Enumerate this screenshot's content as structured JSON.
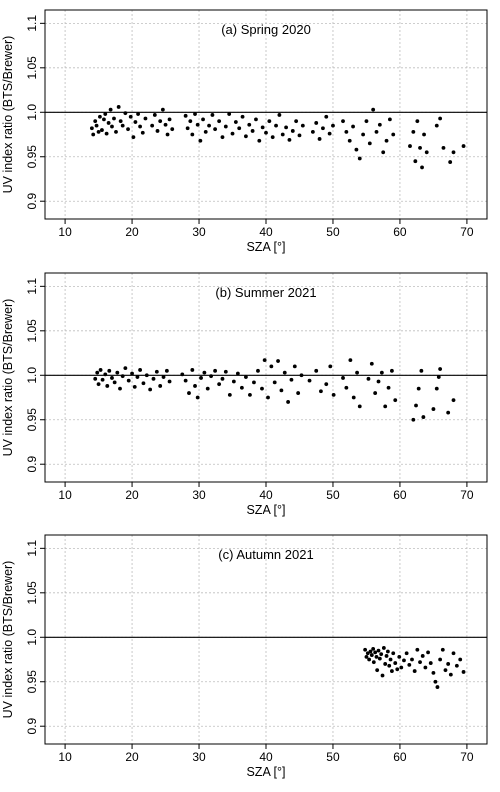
{
  "chart_data": [
    {
      "type": "scatter",
      "title": "(a) Spring 2020",
      "xlabel": "SZA [°]",
      "ylabel": "UV index ratio (BTS/Brewer)",
      "xlim": [
        7,
        73
      ],
      "ylim": [
        0.88,
        1.115
      ],
      "x_ticks": [
        10,
        20,
        30,
        40,
        50,
        60,
        70
      ],
      "x_tick_labels": [
        "10",
        "20",
        "30",
        "40",
        "50",
        "60",
        "70"
      ],
      "y_ticks": [
        0.9,
        0.95,
        1.0,
        1.05,
        1.1
      ],
      "y_tick_labels": [
        "0.9",
        "0.95",
        "1.0",
        "1.05",
        "1.1"
      ],
      "reference_line": 1.0,
      "grid": true,
      "marker_color": "#000000",
      "points": [
        [
          14.0,
          0.982
        ],
        [
          14.2,
          0.975
        ],
        [
          14.5,
          0.99
        ],
        [
          14.7,
          0.985
        ],
        [
          15.0,
          0.978
        ],
        [
          15.2,
          0.995
        ],
        [
          15.5,
          0.98
        ],
        [
          15.8,
          0.992
        ],
        [
          16.0,
          0.998
        ],
        [
          16.2,
          0.976
        ],
        [
          16.5,
          0.988
        ],
        [
          16.8,
          1.003
        ],
        [
          17.0,
          0.984
        ],
        [
          17.3,
          0.993
        ],
        [
          17.6,
          0.978
        ],
        [
          18.0,
          1.006
        ],
        [
          18.3,
          0.99
        ],
        [
          18.6,
          0.985
        ],
        [
          19.0,
          0.999
        ],
        [
          19.4,
          0.981
        ],
        [
          19.8,
          0.995
        ],
        [
          20.2,
          0.972
        ],
        [
          20.5,
          0.989
        ],
        [
          20.9,
          0.998
        ],
        [
          21.2,
          0.984
        ],
        [
          21.6,
          0.977
        ],
        [
          22.0,
          0.993
        ],
        [
          23.0,
          0.985
        ],
        [
          23.4,
          0.997
        ],
        [
          23.8,
          0.979
        ],
        [
          24.2,
          0.99
        ],
        [
          24.6,
          1.003
        ],
        [
          25.0,
          0.986
        ],
        [
          25.3,
          0.975
        ],
        [
          25.6,
          0.992
        ],
        [
          26.0,
          0.981
        ],
        [
          28.0,
          0.996
        ],
        [
          28.3,
          0.982
        ],
        [
          28.7,
          0.99
        ],
        [
          29.0,
          0.975
        ],
        [
          29.4,
          0.998
        ],
        [
          29.8,
          0.986
        ],
        [
          30.2,
          0.968
        ],
        [
          30.6,
          0.992
        ],
        [
          31.0,
          0.978
        ],
        [
          31.5,
          0.985
        ],
        [
          32.0,
          0.997
        ],
        [
          32.4,
          0.981
        ],
        [
          33.0,
          0.99
        ],
        [
          33.5,
          0.972
        ],
        [
          34.0,
          0.984
        ],
        [
          34.5,
          0.998
        ],
        [
          35.0,
          0.976
        ],
        [
          35.5,
          0.989
        ],
        [
          36.0,
          0.982
        ],
        [
          36.5,
          0.995
        ],
        [
          37.0,
          0.973
        ],
        [
          37.5,
          0.986
        ],
        [
          38.0,
          0.979
        ],
        [
          38.5,
          0.992
        ],
        [
          39.0,
          0.968
        ],
        [
          39.5,
          0.983
        ],
        [
          40.0,
          0.977
        ],
        [
          40.5,
          0.99
        ],
        [
          41.0,
          0.972
        ],
        [
          41.5,
          0.985
        ],
        [
          42.0,
          0.997
        ],
        [
          42.5,
          0.975
        ],
        [
          43.0,
          0.983
        ],
        [
          43.5,
          0.969
        ],
        [
          44.0,
          0.979
        ],
        [
          44.5,
          0.99
        ],
        [
          45.0,
          0.974
        ],
        [
          45.5,
          0.985
        ],
        [
          47.0,
          0.978
        ],
        [
          47.5,
          0.988
        ],
        [
          48.0,
          0.97
        ],
        [
          48.5,
          0.982
        ],
        [
          49.0,
          0.995
        ],
        [
          49.5,
          0.976
        ],
        [
          50.0,
          0.985
        ],
        [
          51.5,
          0.99
        ],
        [
          52.0,
          0.978
        ],
        [
          52.5,
          0.968
        ],
        [
          53.0,
          0.984
        ],
        [
          53.5,
          0.958
        ],
        [
          54.0,
          0.948
        ],
        [
          54.5,
          0.975
        ],
        [
          55.0,
          0.99
        ],
        [
          55.5,
          0.965
        ],
        [
          56.0,
          1.003
        ],
        [
          56.5,
          0.978
        ],
        [
          57.0,
          0.986
        ],
        [
          57.5,
          0.955
        ],
        [
          58.0,
          0.968
        ],
        [
          58.5,
          0.992
        ],
        [
          59.0,
          0.975
        ],
        [
          61.5,
          0.962
        ],
        [
          62.0,
          0.978
        ],
        [
          62.3,
          0.945
        ],
        [
          62.6,
          0.99
        ],
        [
          63.0,
          0.96
        ],
        [
          63.3,
          0.938
        ],
        [
          63.6,
          0.975
        ],
        [
          64.0,
          0.955
        ],
        [
          65.5,
          0.985
        ],
        [
          66.0,
          0.993
        ],
        [
          66.5,
          0.96
        ],
        [
          67.5,
          0.944
        ],
        [
          68.0,
          0.955
        ],
        [
          69.5,
          0.962
        ]
      ]
    },
    {
      "type": "scatter",
      "title": "(b) Summer 2021",
      "xlabel": "SZA [°]",
      "ylabel": "UV index ratio (BTS/Brewer)",
      "xlim": [
        7,
        73
      ],
      "ylim": [
        0.88,
        1.115
      ],
      "x_ticks": [
        10,
        20,
        30,
        40,
        50,
        60,
        70
      ],
      "x_tick_labels": [
        "10",
        "20",
        "30",
        "40",
        "50",
        "60",
        "70"
      ],
      "y_ticks": [
        0.9,
        0.95,
        1.0,
        1.05,
        1.1
      ],
      "y_tick_labels": [
        "0.9",
        "0.95",
        "1.0",
        "1.05",
        "1.1"
      ],
      "reference_line": 1.0,
      "grid": true,
      "marker_color": "#000000",
      "points": [
        [
          14.5,
          0.996
        ],
        [
          14.8,
          1.003
        ],
        [
          15.0,
          0.99
        ],
        [
          15.3,
          1.006
        ],
        [
          15.6,
          0.995
        ],
        [
          16.0,
          1.001
        ],
        [
          16.3,
          0.988
        ],
        [
          16.6,
          1.005
        ],
        [
          17.0,
          0.997
        ],
        [
          17.4,
          0.992
        ],
        [
          17.8,
          1.003
        ],
        [
          18.2,
          0.985
        ],
        [
          18.6,
          0.999
        ],
        [
          19.0,
          1.008
        ],
        [
          19.5,
          0.994
        ],
        [
          20.0,
          1.002
        ],
        [
          20.4,
          0.987
        ],
        [
          20.8,
          0.998
        ],
        [
          21.2,
          1.006
        ],
        [
          21.7,
          0.991
        ],
        [
          22.2,
          1.0
        ],
        [
          22.7,
          0.984
        ],
        [
          23.2,
          0.996
        ],
        [
          23.7,
          1.004
        ],
        [
          24.2,
          0.988
        ],
        [
          24.7,
          0.998
        ],
        [
          25.2,
          1.005
        ],
        [
          25.6,
          0.993
        ],
        [
          27.5,
          1.001
        ],
        [
          28.0,
          0.994
        ],
        [
          28.5,
          0.98
        ],
        [
          29.0,
          1.006
        ],
        [
          29.4,
          0.988
        ],
        [
          29.8,
          0.975
        ],
        [
          30.3,
          0.997
        ],
        [
          30.8,
          1.003
        ],
        [
          31.3,
          0.985
        ],
        [
          31.8,
          0.999
        ],
        [
          32.4,
          1.005
        ],
        [
          33.0,
          0.99
        ],
        [
          33.5,
          0.996
        ],
        [
          34.0,
          1.004
        ],
        [
          34.6,
          0.978
        ],
        [
          35.2,
          0.993
        ],
        [
          35.8,
          1.002
        ],
        [
          36.4,
          0.986
        ],
        [
          37.0,
          0.998
        ],
        [
          37.6,
          0.978
        ],
        [
          38.2,
          0.992
        ],
        [
          38.8,
          1.005
        ],
        [
          39.4,
          0.985
        ],
        [
          39.8,
          1.017
        ],
        [
          40.3,
          0.975
        ],
        [
          40.8,
          1.01
        ],
        [
          41.3,
          0.992
        ],
        [
          41.8,
          1.016
        ],
        [
          42.3,
          0.983
        ],
        [
          42.8,
          1.003
        ],
        [
          43.3,
          0.97
        ],
        [
          43.8,
          0.995
        ],
        [
          44.3,
          1.01
        ],
        [
          44.8,
          0.98
        ],
        [
          45.3,
          1.0
        ],
        [
          46.5,
          0.994
        ],
        [
          47.5,
          1.005
        ],
        [
          48.2,
          0.982
        ],
        [
          49.0,
          0.99
        ],
        [
          49.6,
          1.01
        ],
        [
          50.1,
          0.978
        ],
        [
          51.5,
          0.997
        ],
        [
          52.0,
          0.986
        ],
        [
          52.6,
          1.017
        ],
        [
          53.1,
          0.975
        ],
        [
          53.6,
          1.003
        ],
        [
          54.0,
          0.965
        ],
        [
          55.3,
          0.996
        ],
        [
          55.8,
          1.013
        ],
        [
          56.3,
          0.98
        ],
        [
          56.8,
          0.993
        ],
        [
          57.3,
          1.003
        ],
        [
          57.8,
          0.965
        ],
        [
          58.3,
          0.986
        ],
        [
          58.8,
          1.005
        ],
        [
          59.3,
          0.972
        ],
        [
          62.0,
          0.95
        ],
        [
          62.4,
          0.966
        ],
        [
          62.8,
          0.985
        ],
        [
          63.2,
          1.005
        ],
        [
          63.5,
          0.953
        ],
        [
          65.0,
          0.962
        ],
        [
          65.5,
          0.985
        ],
        [
          65.8,
          0.998
        ],
        [
          66.0,
          1.007
        ],
        [
          67.2,
          0.958
        ],
        [
          68.0,
          0.972
        ]
      ]
    },
    {
      "type": "scatter",
      "title": "(c) Autumn 2021",
      "xlabel": "SZA [°]",
      "ylabel": "UV index ratio (BTS/Brewer)",
      "xlim": [
        7,
        73
      ],
      "ylim": [
        0.88,
        1.115
      ],
      "x_ticks": [
        10,
        20,
        30,
        40,
        50,
        60,
        70
      ],
      "x_tick_labels": [
        "10",
        "20",
        "30",
        "40",
        "50",
        "60",
        "70"
      ],
      "y_ticks": [
        0.9,
        0.95,
        1.0,
        1.05,
        1.1
      ],
      "y_tick_labels": [
        "0.9",
        "0.95",
        "1.0",
        "1.05",
        "1.1"
      ],
      "reference_line": 1.0,
      "grid": true,
      "marker_color": "#000000",
      "points": [
        [
          54.8,
          0.986
        ],
        [
          55.0,
          0.978
        ],
        [
          55.2,
          0.982
        ],
        [
          55.4,
          0.975
        ],
        [
          55.6,
          0.984
        ],
        [
          55.8,
          0.98
        ],
        [
          56.0,
          0.987
        ],
        [
          56.1,
          0.972
        ],
        [
          56.3,
          0.983
        ],
        [
          56.5,
          0.978
        ],
        [
          56.6,
          0.963
        ],
        [
          56.8,
          0.985
        ],
        [
          57.0,
          0.976
        ],
        [
          57.2,
          0.981
        ],
        [
          57.4,
          0.957
        ],
        [
          57.6,
          0.988
        ],
        [
          57.8,
          0.97
        ],
        [
          58.0,
          0.979
        ],
        [
          58.2,
          0.984
        ],
        [
          58.4,
          0.968
        ],
        [
          58.6,
          0.975
        ],
        [
          58.8,
          0.962
        ],
        [
          59.0,
          0.982
        ],
        [
          59.3,
          0.971
        ],
        [
          59.6,
          0.964
        ],
        [
          59.9,
          0.978
        ],
        [
          60.2,
          0.966
        ],
        [
          60.6,
          0.974
        ],
        [
          61.0,
          0.982
        ],
        [
          61.4,
          0.969
        ],
        [
          61.8,
          0.975
        ],
        [
          62.2,
          0.962
        ],
        [
          62.6,
          0.986
        ],
        [
          63.0,
          0.972
        ],
        [
          63.4,
          0.979
        ],
        [
          63.8,
          0.966
        ],
        [
          64.2,
          0.983
        ],
        [
          64.6,
          0.971
        ],
        [
          65.0,
          0.96
        ],
        [
          65.3,
          0.95
        ],
        [
          65.6,
          0.944
        ],
        [
          66.0,
          0.975
        ],
        [
          66.4,
          0.986
        ],
        [
          66.8,
          0.963
        ],
        [
          67.2,
          0.97
        ],
        [
          67.6,
          0.958
        ],
        [
          68.0,
          0.982
        ],
        [
          68.5,
          0.968
        ],
        [
          69.0,
          0.975
        ],
        [
          69.5,
          0.961
        ]
      ]
    }
  ]
}
